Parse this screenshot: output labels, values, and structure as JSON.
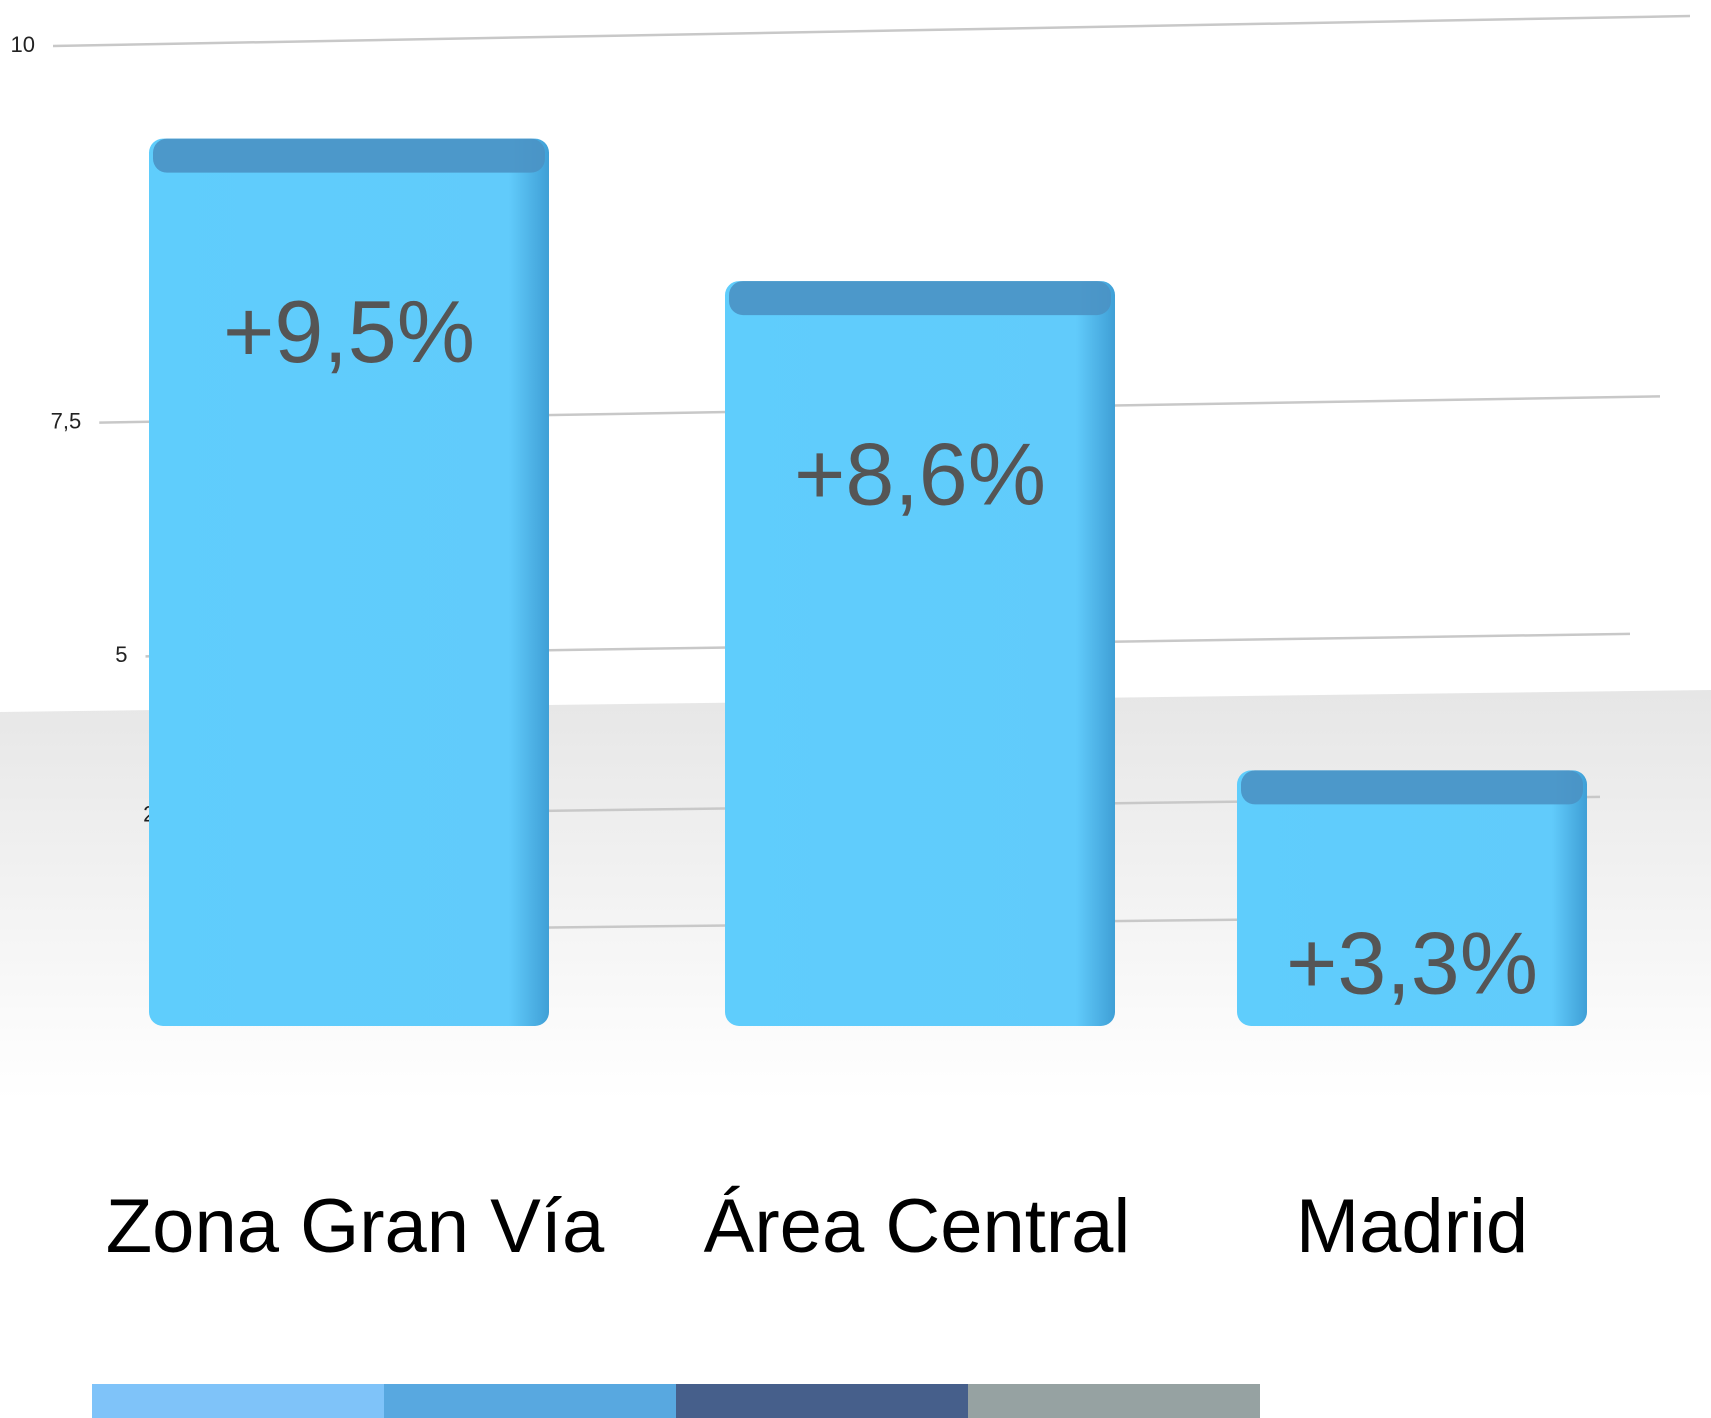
{
  "chart_data": {
    "type": "bar",
    "categories": [
      "Zona Gran Vía",
      "Área Central",
      "Madrid"
    ],
    "values": [
      9.5,
      8.6,
      3.3
    ],
    "value_labels": [
      "+9,5%",
      "+8,6%",
      "+3,3%"
    ],
    "color": "#5fcdfc",
    "ylim": [
      0,
      10
    ],
    "yticks": [
      0,
      {
        "value": 2.5,
        "label": "2,5"
      },
      5,
      {
        "value": 7.5,
        "label": "7,5"
      },
      10
    ],
    "grid": true
  }
}
